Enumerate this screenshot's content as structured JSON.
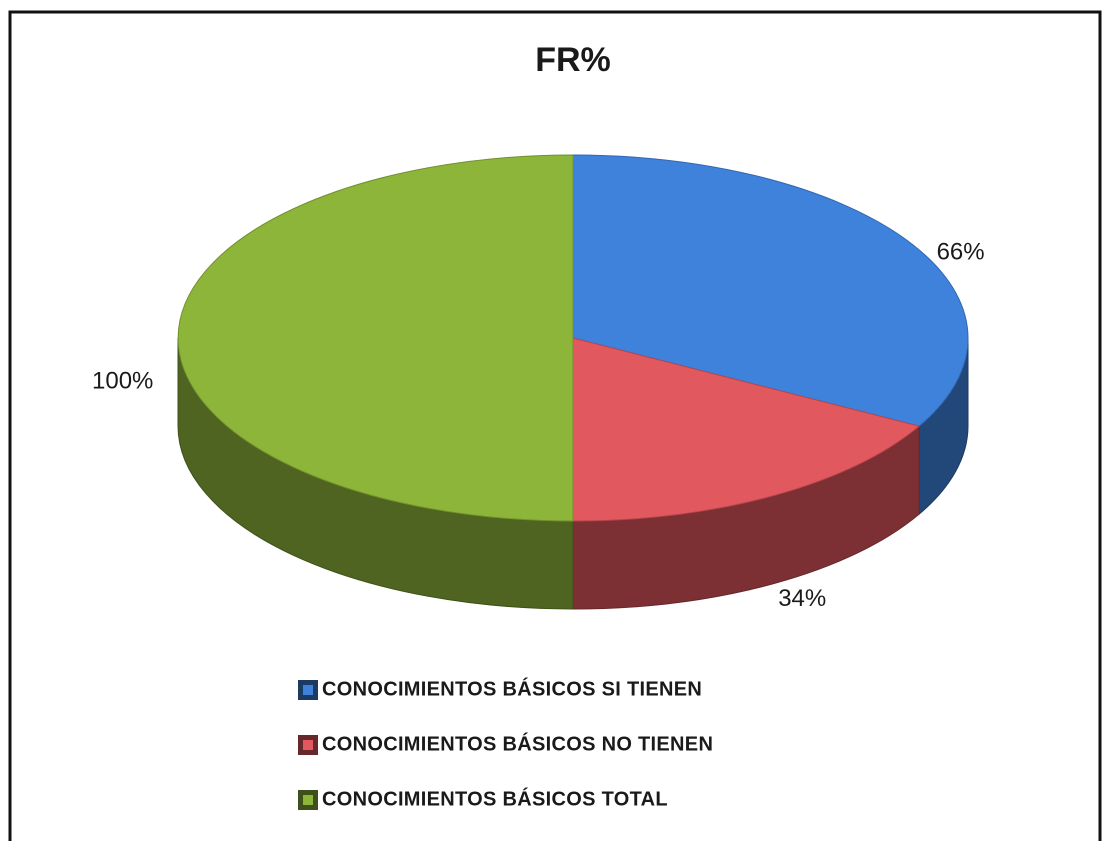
{
  "chart_data": {
    "type": "pie",
    "title": "FR%",
    "categories": [
      "CONOCIMIENTOS BÁSICOS SI TIENEN",
      "CONOCIMIENTOS BÁSICOS NO TIENEN",
      "CONOCIMIENTOS BÁSICOS TOTAL"
    ],
    "values": [
      66,
      34,
      100
    ],
    "value_labels": [
      "66%",
      "34%",
      "100%"
    ],
    "colors": [
      "#3e82dc",
      "#e2585f",
      "#8db53a"
    ],
    "legend": "bottom"
  }
}
